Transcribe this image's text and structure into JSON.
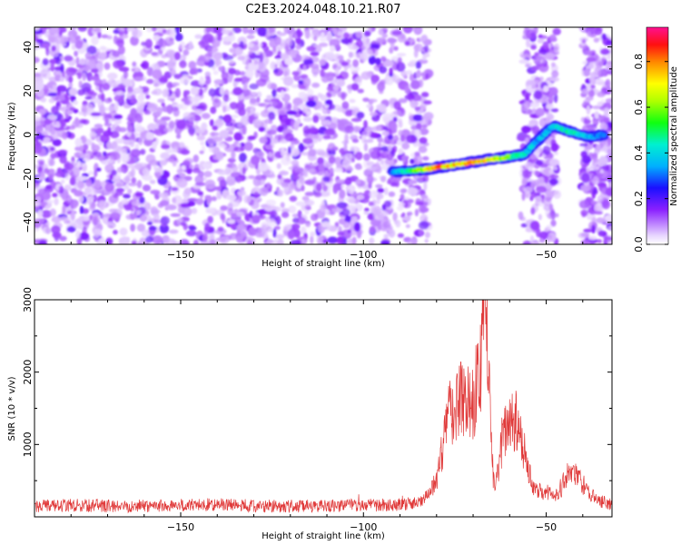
{
  "title": "C2E3.2024.048.10.21.R07",
  "chart_data": [
    {
      "type": "heatmap",
      "xlabel": "Height of straight line (km)",
      "ylabel": "Frequency (Hz)",
      "xlim": [
        -190,
        -32
      ],
      "ylim": [
        -50,
        49
      ],
      "xticks": [
        -150,
        -100,
        -50
      ],
      "yticks": [
        -40,
        -20,
        0,
        20,
        40
      ],
      "grid": false,
      "colorbar": {
        "label": "Normalized spectral amplitude",
        "range": [
          0,
          0.95
        ],
        "ticks": [
          0.0,
          0.2,
          0.4,
          0.6,
          0.8
        ]
      },
      "noise_region_x": [
        -190,
        -82
      ],
      "noise_band_x": [
        -57,
        -47
      ],
      "noise_band2_x": [
        -40,
        -32
      ],
      "ridge": [
        {
          "x": -92,
          "y": -17,
          "amplitude": 0.35
        },
        {
          "x": -88,
          "y": -16.5,
          "amplitude": 0.55
        },
        {
          "x": -84,
          "y": -16,
          "amplitude": 0.7
        },
        {
          "x": -80,
          "y": -15,
          "amplitude": 0.9
        },
        {
          "x": -76,
          "y": -14,
          "amplitude": 0.85
        },
        {
          "x": -72,
          "y": -13,
          "amplitude": 0.9
        },
        {
          "x": -68,
          "y": -12,
          "amplitude": 0.85
        },
        {
          "x": -64,
          "y": -11,
          "amplitude": 0.75
        },
        {
          "x": -60,
          "y": -10,
          "amplitude": 0.65
        },
        {
          "x": -56,
          "y": -9,
          "amplitude": 0.5
        },
        {
          "x": -52,
          "y": -2,
          "amplitude": 0.4
        },
        {
          "x": -48,
          "y": 4,
          "amplitude": 0.45
        },
        {
          "x": -43,
          "y": 1,
          "amplitude": 0.55
        },
        {
          "x": -38,
          "y": -1,
          "amplitude": 0.4
        },
        {
          "x": -34,
          "y": 0,
          "amplitude": 0.35
        }
      ]
    },
    {
      "type": "line",
      "xlabel": "Height of straight line (km)",
      "ylabel": "SNR (10 * v/v)",
      "xlim": [
        -190,
        -32
      ],
      "ylim": [
        0,
        3000
      ],
      "xticks": [
        -150,
        -100,
        -50
      ],
      "yticks": [
        1000,
        2000,
        3000
      ],
      "grid": false,
      "color": "#e03a3a",
      "series": [
        {
          "x": [
            -190,
            -180,
            -170,
            -160,
            -150,
            -140,
            -130,
            -120,
            -110,
            -100,
            -90,
            -84,
            -80,
            -78,
            -76,
            -74,
            -72,
            -70,
            -68,
            -67,
            -66,
            -65,
            -64,
            -62,
            -60,
            -58,
            -56,
            -54,
            -52,
            -50,
            -48,
            -46,
            -44,
            -42,
            -40,
            -36,
            -32
          ],
          "values": [
            150,
            160,
            150,
            150,
            160,
            170,
            150,
            150,
            150,
            160,
            170,
            200,
            500,
            1100,
            1500,
            1650,
            1700,
            1600,
            2100,
            2800,
            2500,
            900,
            300,
            1100,
            1350,
            1400,
            900,
            450,
            380,
            350,
            300,
            400,
            600,
            600,
            450,
            230,
            170
          ]
        }
      ]
    }
  ]
}
